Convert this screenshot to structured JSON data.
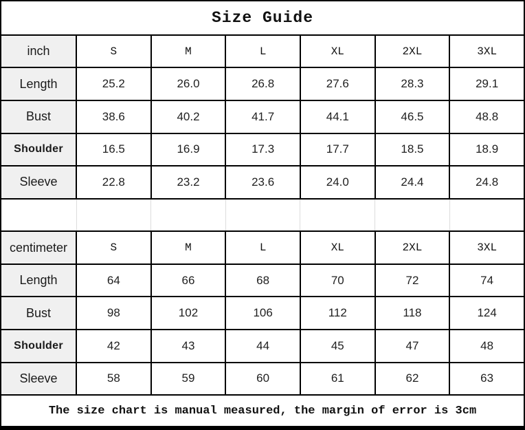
{
  "chart_data": {
    "type": "table",
    "title": "Size Guide",
    "sizes": [
      "S",
      "M",
      "L",
      "XL",
      "2XL",
      "3XL"
    ],
    "sections": [
      {
        "unit": "inch",
        "measurements": [
          {
            "label": "Length",
            "values": [
              "25.2",
              "26.0",
              "26.8",
              "27.6",
              "28.3",
              "29.1"
            ]
          },
          {
            "label": "Bust",
            "values": [
              "38.6",
              "40.2",
              "41.7",
              "44.1",
              "46.5",
              "48.8"
            ]
          },
          {
            "label": "Shoulder",
            "values": [
              "16.5",
              "16.9",
              "17.3",
              "17.7",
              "18.5",
              "18.9"
            ]
          },
          {
            "label": "Sleeve",
            "values": [
              "22.8",
              "23.2",
              "23.6",
              "24.0",
              "24.4",
              "24.8"
            ]
          }
        ]
      },
      {
        "unit": "centimeter",
        "measurements": [
          {
            "label": "Length",
            "values": [
              "64",
              "66",
              "68",
              "70",
              "72",
              "74"
            ]
          },
          {
            "label": "Bust",
            "values": [
              "98",
              "102",
              "106",
              "112",
              "118",
              "124"
            ]
          },
          {
            "label": "Shoulder",
            "values": [
              "42",
              "43",
              "44",
              "45",
              "47",
              "48"
            ]
          },
          {
            "label": "Sleeve",
            "values": [
              "58",
              "59",
              "60",
              "61",
              "62",
              "63"
            ]
          }
        ]
      }
    ],
    "note": "The size chart is manual measured, the margin of error is 3cm",
    "layout": {
      "grid": "on",
      "label_column_bg": "#f0f0f0",
      "border_color": "#000000",
      "spacer_divider_color": "#dcdcdc"
    }
  }
}
